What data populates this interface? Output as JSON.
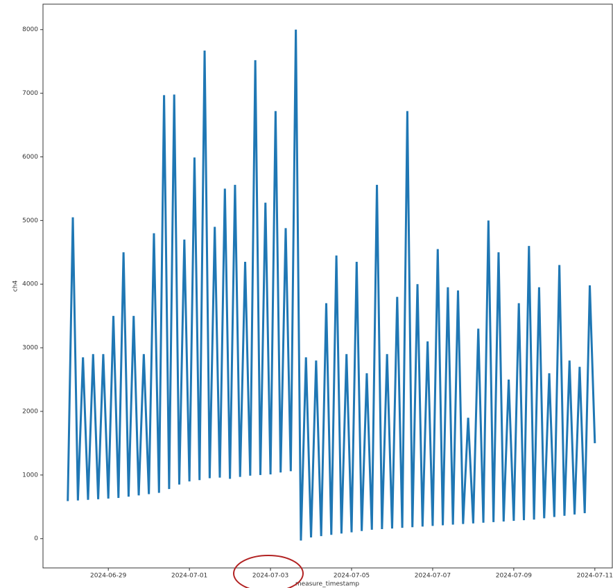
{
  "chart_data": {
    "type": "line",
    "x_label": "measure_timestamp",
    "y_label": "ch4",
    "x": [
      "2024-06-28T00:00",
      "2024-06-28T03:00",
      "2024-06-28T06:00",
      "2024-06-28T09:00",
      "2024-06-28T12:00",
      "2024-06-28T15:00",
      "2024-06-28T18:00",
      "2024-06-28T21:00",
      "2024-06-29T00:00",
      "2024-06-29T03:00",
      "2024-06-29T06:00",
      "2024-06-29T09:00",
      "2024-06-29T12:00",
      "2024-06-29T15:00",
      "2024-06-29T18:00",
      "2024-06-29T21:00",
      "2024-06-30T00:00",
      "2024-06-30T03:00",
      "2024-06-30T06:00",
      "2024-06-30T09:00",
      "2024-06-30T12:00",
      "2024-06-30T15:00",
      "2024-06-30T18:00",
      "2024-06-30T21:00",
      "2024-07-01T00:00",
      "2024-07-01T03:00",
      "2024-07-01T06:00",
      "2024-07-01T09:00",
      "2024-07-01T12:00",
      "2024-07-01T15:00",
      "2024-07-01T18:00",
      "2024-07-01T21:00",
      "2024-07-02T00:00",
      "2024-07-02T03:00",
      "2024-07-02T06:00",
      "2024-07-02T09:00",
      "2024-07-02T12:00",
      "2024-07-02T15:00",
      "2024-07-02T18:00",
      "2024-07-02T21:00",
      "2024-07-03T00:00",
      "2024-07-03T03:00",
      "2024-07-03T06:00",
      "2024-07-03T09:00",
      "2024-07-03T12:00",
      "2024-07-03T15:00",
      "2024-07-03T18:00",
      "2024-07-03T21:00",
      "2024-07-04T00:00",
      "2024-07-04T03:00",
      "2024-07-04T06:00",
      "2024-07-04T09:00",
      "2024-07-04T12:00",
      "2024-07-04T15:00",
      "2024-07-04T18:00",
      "2024-07-04T21:00",
      "2024-07-05T00:00",
      "2024-07-05T03:00",
      "2024-07-05T06:00",
      "2024-07-05T09:00",
      "2024-07-05T12:00",
      "2024-07-05T15:00",
      "2024-07-05T18:00",
      "2024-07-05T21:00",
      "2024-07-06T00:00",
      "2024-07-06T03:00",
      "2024-07-06T06:00",
      "2024-07-06T09:00",
      "2024-07-06T12:00",
      "2024-07-06T15:00",
      "2024-07-06T18:00",
      "2024-07-06T21:00",
      "2024-07-07T00:00",
      "2024-07-07T03:00",
      "2024-07-07T06:00",
      "2024-07-07T09:00",
      "2024-07-07T12:00",
      "2024-07-07T15:00",
      "2024-07-07T18:00",
      "2024-07-07T21:00",
      "2024-07-08T00:00",
      "2024-07-08T03:00",
      "2024-07-08T06:00",
      "2024-07-08T09:00",
      "2024-07-08T12:00",
      "2024-07-08T15:00",
      "2024-07-08T18:00",
      "2024-07-08T21:00",
      "2024-07-09T00:00",
      "2024-07-09T03:00",
      "2024-07-09T06:00",
      "2024-07-09T09:00",
      "2024-07-09T12:00",
      "2024-07-09T15:00",
      "2024-07-09T18:00",
      "2024-07-09T21:00",
      "2024-07-10T00:00",
      "2024-07-10T03:00",
      "2024-07-10T06:00",
      "2024-07-10T09:00",
      "2024-07-10T12:00",
      "2024-07-10T15:00",
      "2024-07-10T18:00",
      "2024-07-10T21:00",
      "2024-07-11T00:00"
    ],
    "series": [
      {
        "name": "ch4",
        "color": "#1f77b4",
        "values": [
          590,
          5050,
          600,
          2850,
          610,
          2900,
          620,
          2900,
          630,
          3500,
          640,
          4500,
          660,
          3500,
          680,
          2900,
          700,
          4800,
          720,
          6970,
          780,
          6980,
          850,
          4700,
          900,
          5990,
          920,
          7670,
          950,
          4900,
          960,
          5500,
          940,
          5560,
          970,
          4350,
          990,
          7520,
          1000,
          5280,
          1010,
          6720,
          1040,
          4880,
          1060,
          8000,
          -30,
          2850,
          20,
          2800,
          40,
          3700,
          60,
          4450,
          80,
          2900,
          100,
          4350,
          120,
          2600,
          140,
          5560,
          150,
          2900,
          160,
          3800,
          170,
          6720,
          180,
          4000,
          190,
          3100,
          200,
          4550,
          210,
          3950,
          220,
          3900,
          230,
          1900,
          240,
          3300,
          250,
          5000,
          260,
          4500,
          270,
          2500,
          280,
          3700,
          290,
          4600,
          300,
          3950,
          320,
          2600,
          340,
          4300,
          360,
          2800,
          380,
          2700,
          400,
          3980,
          1500
        ]
      }
    ],
    "xlim": [
      "2024-06-27T09:20",
      "2024-07-11T10:20"
    ],
    "xticks": [
      "2024-06-29",
      "2024-07-01",
      "2024-07-03",
      "2024-07-05",
      "2024-07-07",
      "2024-07-09",
      "2024-07-11"
    ],
    "ylim": [
      -460,
      8400
    ],
    "yticks": [
      0,
      1000,
      2000,
      3000,
      4000,
      5000,
      6000,
      7000,
      8000
    ],
    "grid": false
  }
}
